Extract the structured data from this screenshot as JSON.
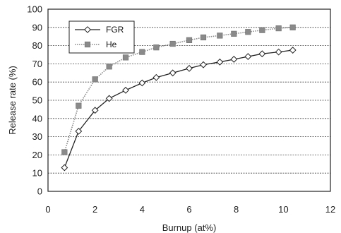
{
  "chart_data": {
    "type": "line",
    "title": "",
    "xlabel": "Burnup (at%)",
    "ylabel": "Release rate (%)",
    "xlim": [
      0,
      12
    ],
    "ylim": [
      0,
      100
    ],
    "x_ticks": [
      "0",
      "2",
      "4",
      "6",
      "8",
      "10",
      "12"
    ],
    "y_ticks": [
      "0",
      "10",
      "20",
      "30",
      "40",
      "50",
      "60",
      "70",
      "80",
      "90",
      "100"
    ],
    "grid": "horizontal",
    "legend": "top-left",
    "series": [
      {
        "name": "FGR",
        "marker": "diamond-open",
        "line_style": "solid",
        "color": "#222222",
        "x": [
          0.7,
          1.3,
          2.0,
          2.6,
          3.3,
          4.0,
          4.6,
          5.3,
          6.0,
          6.6,
          7.3,
          7.9,
          8.5,
          9.1,
          9.8,
          10.4
        ],
        "values": [
          13,
          33,
          44.5,
          51,
          55.5,
          59.5,
          62.5,
          65,
          67.5,
          69.5,
          71,
          72.5,
          74,
          75.5,
          76.5,
          77.5
        ]
      },
      {
        "name": "He",
        "marker": "square-filled",
        "line_style": "dotted",
        "color": "#8a8a8a",
        "x": [
          0.7,
          1.3,
          2.0,
          2.6,
          3.3,
          4.0,
          4.6,
          5.3,
          6.0,
          6.6,
          7.3,
          7.9,
          8.5,
          9.1,
          9.8,
          10.4
        ],
        "values": [
          21.5,
          47,
          61.5,
          68.5,
          73.5,
          76.5,
          79,
          81,
          83,
          84.5,
          85.5,
          86.5,
          87.5,
          88.5,
          89.5,
          90
        ]
      }
    ]
  }
}
